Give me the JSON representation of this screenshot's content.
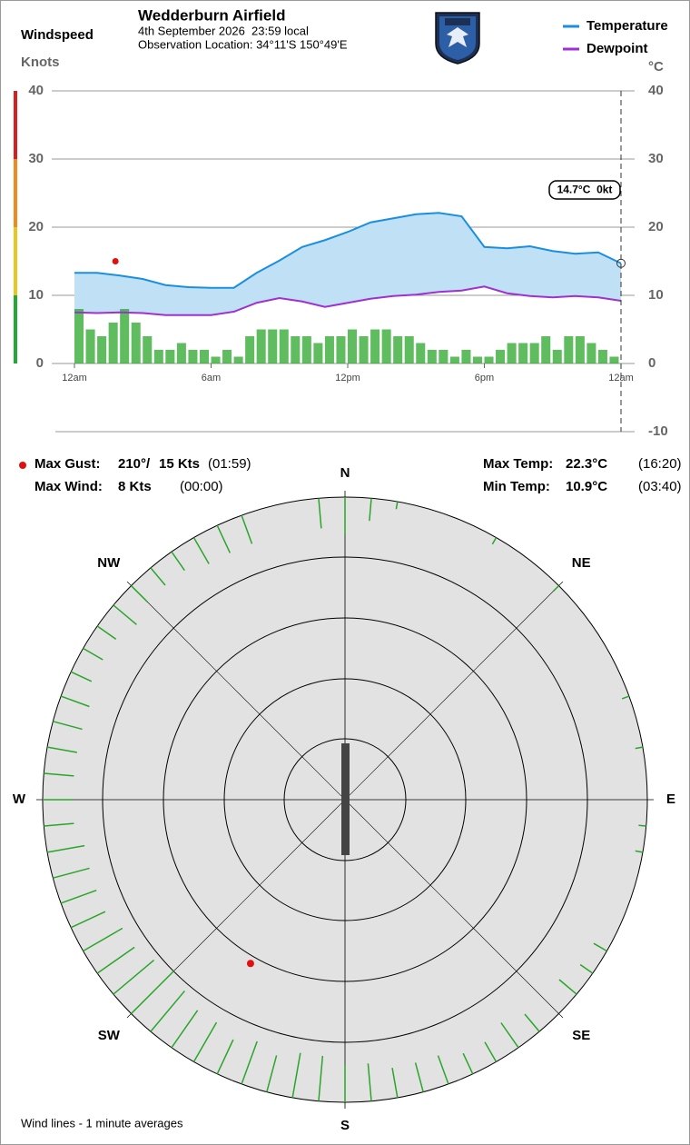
{
  "chart_data": [
    {
      "type": "line",
      "title": "Wedderburn Airfield",
      "subtitle": "4th September 2026  23:59 local",
      "location": "Observation Location: 34°11'S 150°49'E",
      "y_label": "Windspeed",
      "y_units": "Knots",
      "y2_units": "°C",
      "xlim": [
        0,
        24
      ],
      "xticks": [
        {
          "value": 0,
          "label": "12am"
        },
        {
          "value": 6,
          "label": "6am"
        },
        {
          "value": 12,
          "label": "12pm"
        },
        {
          "value": 18,
          "label": "6pm"
        },
        {
          "value": 24,
          "label": "12am"
        }
      ],
      "ylim": [
        0,
        40
      ],
      "yticks": [
        0,
        10,
        20,
        30,
        40
      ],
      "y2lim": [
        -10,
        40
      ],
      "y2ticks": [
        -10,
        0,
        10,
        20,
        30,
        40
      ],
      "grid": true,
      "legend": "top-right",
      "x": [
        0,
        1,
        2,
        3,
        4,
        5,
        6,
        7,
        8,
        9,
        10,
        11,
        12,
        13,
        14,
        15,
        16,
        17,
        18,
        19,
        20,
        21,
        22,
        23,
        24
      ],
      "series": [
        {
          "name": "Temperature",
          "color": "#1a8fe0",
          "axis": "y2",
          "values": [
            13.3,
            13.3,
            12.9,
            12.4,
            11.5,
            11.2,
            11.1,
            11.1,
            13.3,
            15.1,
            17.1,
            18.1,
            19.3,
            20.7,
            21.3,
            21.9,
            22.1,
            21.6,
            17.1,
            16.9,
            17.2,
            16.5,
            16.1,
            16.3,
            14.7
          ]
        },
        {
          "name": "Dewpoint",
          "color": "#a030d0",
          "axis": "y2",
          "values": [
            7.5,
            7.4,
            7.5,
            7.4,
            7.1,
            7.1,
            7.1,
            7.6,
            8.9,
            9.6,
            9.1,
            8.3,
            8.9,
            9.5,
            9.9,
            10.1,
            10.5,
            10.7,
            11.3,
            10.3,
            9.9,
            9.7,
            9.9,
            9.7,
            9.2
          ]
        }
      ],
      "windspeed": {
        "color": "#2aa52a",
        "x": [
          0,
          0.5,
          1,
          1.5,
          2,
          2.5,
          3,
          3.5,
          4,
          4.5,
          5,
          5.5,
          6,
          6.5,
          7,
          7.5,
          8,
          8.5,
          9,
          9.5,
          10,
          10.5,
          11,
          11.5,
          12,
          12.5,
          13,
          13.5,
          14,
          14.5,
          15,
          15.5,
          16,
          16.5,
          17,
          17.5,
          18,
          18.5,
          19,
          19.5,
          20,
          20.5,
          21,
          21.5,
          22,
          22.5,
          23,
          23.5
        ],
        "values": [
          8,
          5,
          4,
          6,
          8,
          6,
          4,
          2,
          2,
          3,
          2,
          2,
          1,
          2,
          1,
          4,
          5,
          5,
          5,
          4,
          4,
          3,
          4,
          4,
          5,
          4,
          5,
          5,
          4,
          4,
          3,
          2,
          2,
          1,
          2,
          1,
          1,
          2,
          3,
          3,
          3,
          4,
          2,
          4,
          4,
          3,
          2,
          1
        ]
      },
      "gust_x": 1.8,
      "readout": "14.7°C  0kt"
    },
    {
      "type": "polar",
      "direction_labels": [
        "N",
        "NE",
        "E",
        "SE",
        "S",
        "SW",
        "W",
        "NW"
      ],
      "rlim": [
        0,
        40
      ],
      "color": "#2aa52a",
      "directions": [
        355,
        0,
        5,
        10,
        30,
        45,
        70,
        80,
        95,
        100,
        120,
        125,
        130,
        140,
        145,
        150,
        155,
        160,
        165,
        170,
        175,
        180,
        185,
        190,
        195,
        200,
        205,
        210,
        215,
        220,
        225,
        230,
        235,
        240,
        245,
        250,
        255,
        260,
        265,
        270,
        275,
        280,
        285,
        290,
        295,
        300,
        305,
        310,
        315,
        320,
        325,
        330,
        335,
        340
      ],
      "speeds": [
        4,
        5,
        3,
        1,
        1,
        1,
        1,
        1,
        1,
        1,
        2,
        2,
        3,
        3,
        4,
        3,
        3,
        4,
        4,
        4,
        5,
        5,
        6,
        6,
        5,
        6,
        5,
        6,
        6,
        7,
        8,
        7,
        6,
        6,
        5,
        5,
        5,
        5,
        4,
        4,
        4,
        4,
        4,
        4,
        3,
        3,
        3,
        4,
        3,
        3,
        3,
        4,
        4,
        4
      ],
      "footnote": "Wind lines - 1 minute averages"
    }
  ],
  "stats": {
    "max_gust": {
      "label": "Max Gust:",
      "direction": 210,
      "direction_label": "210°/",
      "speed": 15,
      "speed_label": "15 Kts",
      "time": "(01:59)"
    },
    "max_wind": {
      "label": "Max Wind:",
      "speed": 8,
      "speed_label": "8 Kts",
      "time": "(00:00)"
    },
    "max_temp": {
      "label": "Max Temp:",
      "value": 22.3,
      "value_label": "22.3°C",
      "time": "(16:20)"
    },
    "min_temp": {
      "label": "Min Temp:",
      "value": 10.9,
      "value_label": "10.9°C",
      "time": "(03:40)"
    }
  }
}
